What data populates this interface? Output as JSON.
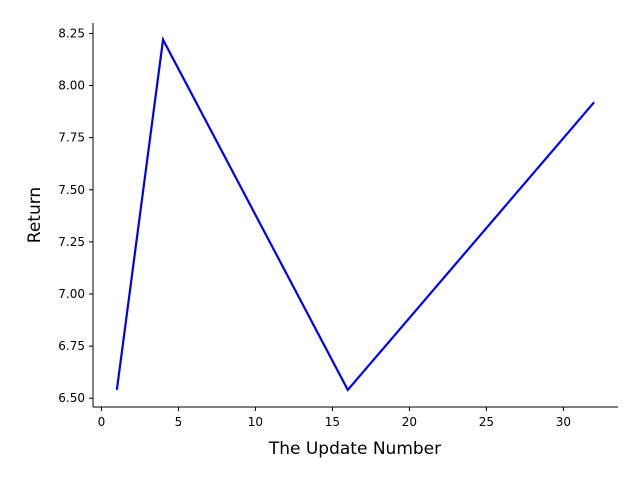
{
  "chart_data": {
    "type": "line",
    "title": "",
    "xlabel": "The Update Number",
    "ylabel": "Return",
    "xlim": [
      -0.55,
      33.55
    ],
    "ylim": [
      6.458,
      8.3
    ],
    "xticks": [
      0,
      5,
      10,
      15,
      20,
      25,
      30
    ],
    "yticks": [
      6.5,
      6.75,
      7.0,
      7.25,
      7.5,
      7.75,
      8.0,
      8.25
    ],
    "grid": false,
    "legend": "none",
    "series": [
      {
        "color": "#0000ee",
        "x": [
          1,
          4,
          16,
          32
        ],
        "y": [
          6.54,
          8.22,
          6.54,
          7.92
        ]
      }
    ]
  }
}
